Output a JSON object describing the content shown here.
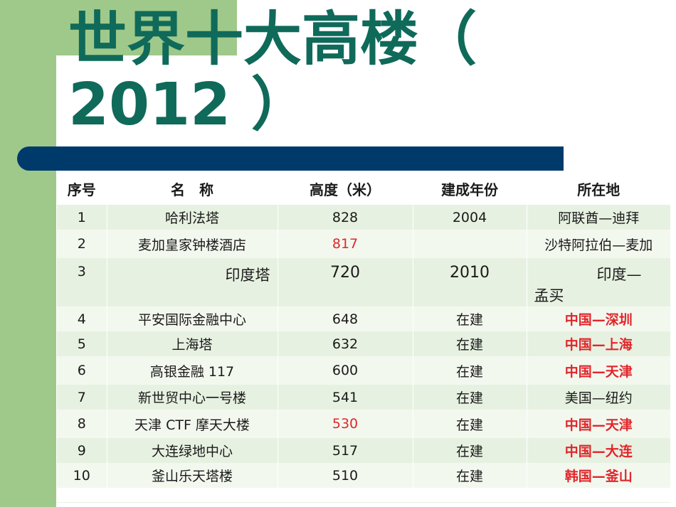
{
  "slide": {
    "title": "世界十大高楼（ 2012 ）"
  },
  "table": {
    "headers": [
      "序号",
      "名　称",
      "高度（米）",
      "建成年份",
      "所在地"
    ],
    "rows": [
      {
        "rank": "1",
        "name": "哈利法塔",
        "height": "828",
        "year": "2004",
        "location": "阿联酋—迪拜"
      },
      {
        "rank": "2",
        "name": "麦加皇家钟楼酒店",
        "height": "817",
        "year": "",
        "location": "沙特阿拉伯—麦加"
      },
      {
        "rank": "3",
        "name": "印度塔",
        "height": "720",
        "year": "2010",
        "location_line1": "印度—",
        "location_line2": "孟买"
      },
      {
        "rank": "4",
        "name": "平安国际金融中心",
        "height": "648",
        "year": "在建",
        "location": "中国—深圳"
      },
      {
        "rank": "5",
        "name": "上海塔",
        "height": "632",
        "year": "在建",
        "location": "中国—上海"
      },
      {
        "rank": "6",
        "name": "高银金融 117",
        "height": "600",
        "year": "在建",
        "location": "中国—天津"
      },
      {
        "rank": "7",
        "name": "新世贸中心一号楼",
        "height": "541",
        "year": "在建",
        "location": "美国—纽约"
      },
      {
        "rank": "8",
        "name": "天津 CTF 摩天大楼",
        "height": "530",
        "year": "在建",
        "location": "中国—天津"
      },
      {
        "rank": "9",
        "name": "大连绿地中心",
        "height": "517",
        "year": "在建",
        "location": "中国—大连"
      },
      {
        "rank": "10",
        "name": "釜山乐天塔楼",
        "height": "510",
        "year": "在建",
        "location": "韩国—釜山"
      }
    ]
  },
  "colors": {
    "title": "#0f6a5a",
    "accent_green": "#9fc98a",
    "bar_navy": "#003a6b",
    "highlight_red": "#e1262b"
  }
}
